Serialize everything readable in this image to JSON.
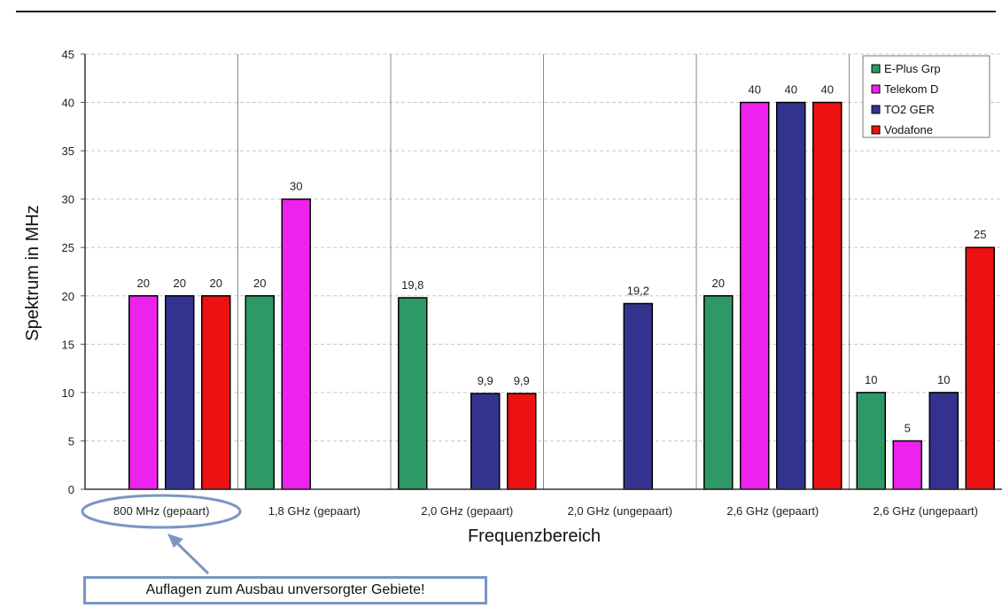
{
  "chart_data": {
    "type": "bar",
    "categories": [
      "800 MHz (gepaart)",
      "1,8 GHz (gepaart)",
      "2,0 GHz (gepaart)",
      "2,0 GHz (ungepaart)",
      "2,6 GHz (gepaart)",
      "2,6 GHz (ungepaart)"
    ],
    "series": [
      {
        "name": "E-Plus Grp",
        "color": "#2e9966",
        "values": [
          null,
          20,
          19.8,
          null,
          20,
          10
        ],
        "labels": [
          null,
          "20",
          "19,8",
          null,
          "20",
          "10"
        ]
      },
      {
        "name": "Telekom D",
        "color": "#ee22ee",
        "values": [
          20,
          30,
          null,
          null,
          40,
          5
        ],
        "labels": [
          "20",
          "30",
          null,
          null,
          "40",
          "5"
        ]
      },
      {
        "name": "TO2 GER",
        "color": "#33338f",
        "values": [
          20,
          null,
          9.9,
          19.2,
          40,
          10
        ],
        "labels": [
          "20",
          null,
          "9,9",
          "19,2",
          "40",
          "10"
        ]
      },
      {
        "name": "Vodafone",
        "color": "#ee1111",
        "values": [
          20,
          null,
          9.9,
          null,
          40,
          25
        ],
        "labels": [
          "20",
          null,
          "9,9",
          null,
          "40",
          "25"
        ]
      }
    ],
    "yticks": [
      "0",
      "5",
      "10",
      "15",
      "20",
      "25",
      "30",
      "35",
      "40",
      "45"
    ],
    "ylim": [
      0,
      45
    ],
    "xlabel": "Frequenzbereich",
    "ylabel": "Spektrum in MHz",
    "grid": true,
    "legend_position": "top-right",
    "annotation": "Auflagen zum Ausbau unversorgter Gebiete!"
  }
}
